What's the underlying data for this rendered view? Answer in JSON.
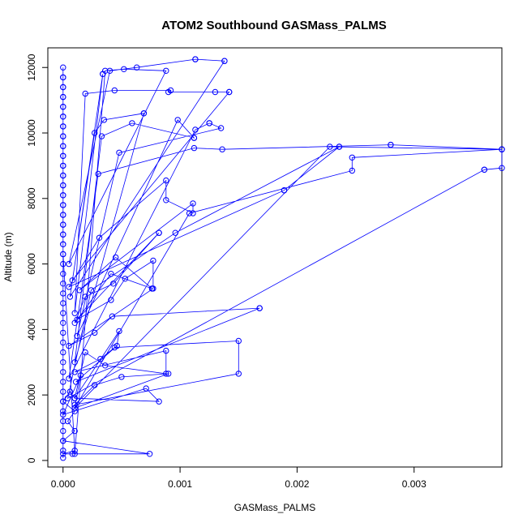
{
  "chart_data": {
    "type": "line",
    "title": "ATOM2 Southbound GASMass_PALMS",
    "xlabel": "GASMass_PALMS",
    "ylabel": "Altitude (m)",
    "xlim": [
      -0.00013,
      0.00375
    ],
    "ylim": [
      -200,
      12600
    ],
    "x_ticks": [
      0.0,
      0.001,
      0.002,
      0.003
    ],
    "x_tick_labels": [
      "0.000",
      "0.001",
      "0.002",
      "0.003"
    ],
    "y_ticks": [
      0,
      2000,
      4000,
      6000,
      8000,
      10000,
      12000
    ],
    "y_tick_labels": [
      "0",
      "2000",
      "4000",
      "6000",
      "8000",
      "10000",
      "12000"
    ],
    "grid": false,
    "legend": "none",
    "marker": "open-circle",
    "color": "#0000ff",
    "series": [
      {
        "x": [
          0.0,
          0.0,
          0.0,
          0.0,
          0.0,
          0.0,
          0.0,
          0.0,
          0.0,
          0.0,
          0.0,
          0.0,
          0.0,
          0.0,
          0.0,
          0.0,
          0.0,
          0.0,
          0.0,
          0.0,
          0.0,
          0.0,
          0.0,
          0.0,
          0.0,
          0.0,
          0.0,
          0.0,
          0.0,
          0.0,
          0.0,
          0.0,
          0.0,
          0.0,
          0.0,
          0.0,
          0.0,
          0.0,
          0.0,
          0.0,
          0.0,
          0.0,
          0.0,
          0.0,
          0.0,
          0.0,
          0.0,
          0.0,
          0.0,
          0.0,
          0.0,
          0.0,
          0.0,
          0.0,
          0.0,
          0.0,
          0.0,
          0.0,
          0.0,
          0.0,
          0.0001,
          0.0,
          8e-05,
          0.00074,
          0.0,
          0.0001,
          4e-05,
          0.0001,
          0.0,
          6e-05,
          0.0001,
          0.00082,
          0.00071,
          0.0,
          0.00015,
          0.0001,
          0.0009,
          0.0005,
          0.00027,
          0.0001,
          0.0015,
          0.0015,
          0.00044,
          0.00032,
          0.0001,
          0.00088,
          0.00088,
          0.00036,
          0.00019,
          0.0001,
          0.00048,
          0.00046,
          0.00011,
          0.00168,
          0.00168,
          0.00042,
          0.00027,
          5e-05,
          0.00077,
          0.00077,
          0.00053,
          0.00041,
          0.00012,
          0.00082,
          0.00082,
          0.00043,
          0.00019,
          0.0001,
          0.00041,
          0.00076,
          0.00076,
          0.00045,
          0.00014,
          0.00111,
          0.00111,
          0.00088,
          0.00088,
          0.00031,
          5e-05,
          0.00189,
          0.00189,
          0.00236,
          0.00236,
          0.00096,
          0.00024,
          4e-05,
          0.0036,
          0.0036,
          0.00375,
          0.00375,
          0.00247,
          0.00247,
          0.00108,
          0.0001,
          0.00228,
          0.00375,
          0.00375,
          0.0028,
          0.0028,
          0.00136,
          0.00112,
          0.0003,
          5e-05,
          0.00113,
          0.00125,
          0.00125,
          0.00135,
          0.00048,
          0.00012,
          0.00098,
          0.00112,
          0.00112,
          0.00059,
          0.00033,
          0.0001,
          0.00069,
          0.00069,
          0.00035,
          0.00027,
          8e-05,
          0.00142,
          0.00142,
          0.0013,
          0.0009,
          0.00092,
          0.00044,
          0.00019,
          0.0001,
          0.00034,
          0.00034,
          6e-05,
          0.00138,
          0.00138,
          0.00113,
          0.00113,
          0.00063,
          0.0004,
          5e-05,
          0.00088,
          0.00052,
          0.00036,
          0.0001
        ],
        "y": [
          80,
          300,
          600,
          900,
          1200,
          1500,
          1800,
          2100,
          2400,
          2700,
          3000,
          3300,
          3600,
          3900,
          4200,
          4500,
          4800,
          5100,
          5400,
          5700,
          6000,
          6300,
          6600,
          6900,
          7200,
          7500,
          7800,
          8100,
          8400,
          8700,
          9000,
          9300,
          9600,
          9900,
          10200,
          10500,
          10800,
          11100,
          11400,
          11700,
          12000,
          11700,
          11400,
          11100,
          10800,
          10500,
          10200,
          9900,
          9600,
          9300,
          9000,
          8700,
          8400,
          8100,
          7800,
          7500,
          7200,
          6900,
          6600,
          6300,
          300,
          200,
          200,
          200,
          600,
          900,
          1200,
          1500,
          1800,
          2100,
          1900,
          1800,
          2200,
          1400,
          2600,
          1600,
          2650,
          2550,
          2300,
          1700,
          2650,
          3650,
          3450,
          3100,
          2700,
          3350,
          2650,
          2900,
          3300,
          1900,
          3950,
          3500,
          2400,
          4650,
          4650,
          4400,
          3900,
          3500,
          5250,
          6100,
          5550,
          4900,
          4300,
          6950,
          6950,
          5400,
          5000,
          4200,
          5700,
          5250,
          5250,
          6200,
          5200,
          7850,
          7550,
          7950,
          8550,
          6800,
          5300,
          8250,
          8250,
          9580,
          9580,
          6950,
          5200,
          1900,
          8880,
          8880,
          8930,
          9500,
          9250,
          8850,
          7550,
          1600,
          9580,
          9500,
          9500,
          9640,
          9640,
          9500,
          9540,
          8750,
          2500,
          10100,
          10300,
          10300,
          10150,
          9400,
          3800,
          10400,
          9850,
          9850,
          10300,
          9900,
          3000,
          10600,
          10600,
          10400,
          10000,
          5500,
          11250,
          11250,
          11250,
          11250,
          11300,
          11300,
          11200,
          4500,
          11800,
          11800,
          5000,
          12200,
          12200,
          12250,
          12250,
          12000,
          11900,
          6000,
          11900,
          11950,
          11900,
          200
        ]
      }
    ]
  }
}
